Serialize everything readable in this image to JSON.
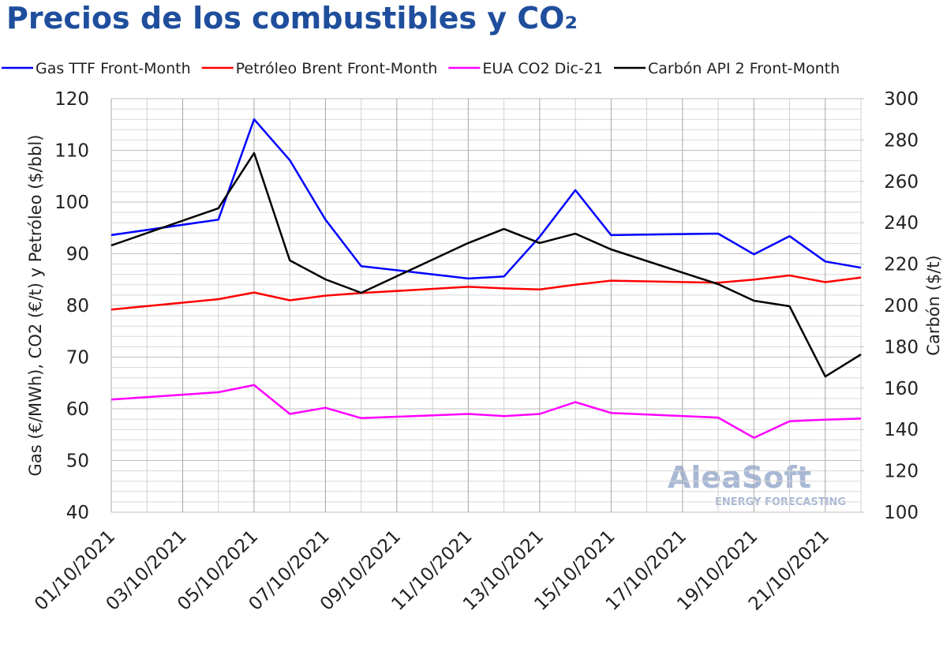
{
  "chart_data": {
    "type": "line",
    "title": "Precios de los combustibles y CO₂",
    "y_label": "Gas (€/MWh), CO2 (€/t)  y Petróleo ($/bbl)",
    "y2_label": "Carbón ($/t)",
    "watermark": {
      "brand": "AleaSoft",
      "tagline": "ENERGY FORECASTING"
    },
    "categories": [
      "01/10/2021",
      null,
      "03/10/2021",
      null,
      "05/10/2021",
      null,
      "07/10/2021",
      null,
      "09/10/2021",
      null,
      "11/10/2021",
      null,
      "13/10/2021",
      null,
      "15/10/2021",
      null,
      "17/10/2021",
      null,
      "19/10/2021",
      null,
      "21/10/2021",
      null
    ],
    "connect_gaps": true,
    "grid": true,
    "legend": "top",
    "ylim": [
      40,
      120
    ],
    "yticks": [
      40,
      50,
      60,
      70,
      80,
      90,
      100,
      110,
      120
    ],
    "y2lim": [
      100,
      300
    ],
    "y2ticks": [
      100,
      120,
      140,
      160,
      180,
      200,
      220,
      240,
      260,
      280,
      300
    ],
    "series": [
      {
        "name": "Gas TTF Front-Month",
        "color": "#0000ff",
        "values": [
          93.6,
          null,
          null,
          96.6,
          116,
          108.1,
          96.6,
          87.6,
          null,
          null,
          85.2,
          85.6,
          93.3,
          102.3,
          93.6,
          null,
          null,
          93.9,
          89.9,
          93.4,
          88.5,
          87.3
        ]
      },
      {
        "name": "Petróleo Brent Front-Month",
        "color": "#ff0000",
        "values": [
          79.2,
          null,
          null,
          81.2,
          82.5,
          81,
          81.9,
          82.4,
          null,
          null,
          83.6,
          83.3,
          83.1,
          84,
          84.8,
          null,
          null,
          84.4,
          85,
          85.8,
          84.5,
          85.4
        ]
      },
      {
        "name": "EUA CO2 Dic-21",
        "color": "#ff00ff",
        "values": [
          61.8,
          null,
          null,
          63.2,
          64.6,
          59,
          60.2,
          58.2,
          null,
          null,
          59,
          58.6,
          59,
          61.3,
          59.2,
          null,
          null,
          58.3,
          54.4,
          57.6,
          57.9,
          58.1
        ]
      },
      {
        "name": "Carbón API 2 Front-Month",
        "color": "#000000",
        "axis": "y2",
        "values": [
          229,
          null,
          null,
          247,
          273.7,
          221.8,
          212.6,
          206.1,
          null,
          null,
          230.2,
          237,
          230.2,
          234.7,
          227.1,
          null,
          null,
          210.3,
          202.3,
          199.6,
          165.6,
          176.3
        ]
      }
    ]
  }
}
